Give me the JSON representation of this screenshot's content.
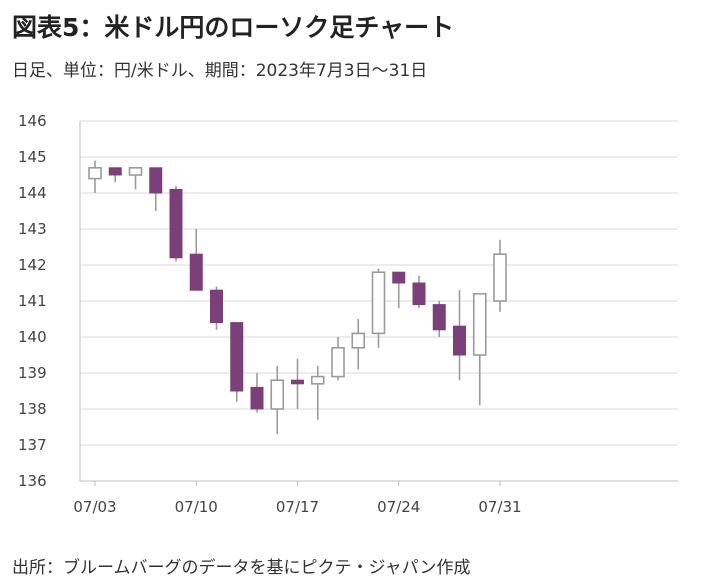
{
  "header": {
    "title": "図表5：米ドル円のローソク足チャート",
    "subtitle": "日足、単位：円/米ドル、期間：2023年7月3日～31日"
  },
  "footer": {
    "source": "出所：ブルームバーグのデータを基にピクテ・ジャパン作成"
  },
  "colors": {
    "bearish": "#7b3f7a",
    "bullish_fill": "#ffffff",
    "bullish_outline": "#9b9b9b",
    "wick": "#9b9b9b",
    "grid": "#d9d9d9",
    "axis": "#bfbfbf"
  },
  "chart_data": {
    "type": "candlestick",
    "title": "",
    "xlabel": "",
    "ylabel": "",
    "ylim": [
      136,
      146
    ],
    "yticks": [
      136,
      137,
      138,
      139,
      140,
      141,
      142,
      143,
      144,
      145,
      146
    ],
    "xtick_labels": [
      "07/03",
      "07/10",
      "07/17",
      "07/24",
      "07/31"
    ],
    "grid": "horizontal",
    "candles": [
      {
        "date": "07/03",
        "open": 144.4,
        "high": 144.9,
        "low": 144.0,
        "close": 144.7
      },
      {
        "date": "07/04",
        "open": 144.7,
        "high": 144.7,
        "low": 144.3,
        "close": 144.5
      },
      {
        "date": "07/05",
        "open": 144.5,
        "high": 144.7,
        "low": 144.1,
        "close": 144.7
      },
      {
        "date": "07/06",
        "open": 144.7,
        "high": 144.7,
        "low": 143.5,
        "close": 144.0
      },
      {
        "date": "07/07",
        "open": 144.1,
        "high": 144.2,
        "low": 142.1,
        "close": 142.2
      },
      {
        "date": "07/10",
        "open": 142.3,
        "high": 143.0,
        "low": 141.3,
        "close": 141.3
      },
      {
        "date": "07/11",
        "open": 141.3,
        "high": 141.4,
        "low": 140.2,
        "close": 140.4
      },
      {
        "date": "07/12",
        "open": 140.4,
        "high": 140.4,
        "low": 138.2,
        "close": 138.5
      },
      {
        "date": "07/13",
        "open": 138.6,
        "high": 139.0,
        "low": 137.9,
        "close": 138.0
      },
      {
        "date": "07/14",
        "open": 138.0,
        "high": 139.2,
        "low": 137.3,
        "close": 138.8
      },
      {
        "date": "07/17",
        "open": 138.8,
        "high": 139.4,
        "low": 138.0,
        "close": 138.7
      },
      {
        "date": "07/18",
        "open": 138.7,
        "high": 139.2,
        "low": 137.7,
        "close": 138.9
      },
      {
        "date": "07/19",
        "open": 138.9,
        "high": 140.0,
        "low": 138.8,
        "close": 139.7
      },
      {
        "date": "07/20",
        "open": 139.7,
        "high": 140.5,
        "low": 139.1,
        "close": 140.1
      },
      {
        "date": "07/21",
        "open": 140.1,
        "high": 141.9,
        "low": 139.7,
        "close": 141.8
      },
      {
        "date": "07/24",
        "open": 141.8,
        "high": 141.8,
        "low": 140.8,
        "close": 141.5
      },
      {
        "date": "07/25",
        "open": 141.5,
        "high": 141.7,
        "low": 140.8,
        "close": 140.9
      },
      {
        "date": "07/26",
        "open": 140.9,
        "high": 141.0,
        "low": 140.0,
        "close": 140.2
      },
      {
        "date": "07/27",
        "open": 140.3,
        "high": 141.3,
        "low": 138.8,
        "close": 139.5
      },
      {
        "date": "07/28",
        "open": 139.5,
        "high": 141.2,
        "low": 138.1,
        "close": 141.2
      },
      {
        "date": "07/31",
        "open": 141.0,
        "high": 142.7,
        "low": 140.7,
        "close": 142.3
      }
    ]
  }
}
